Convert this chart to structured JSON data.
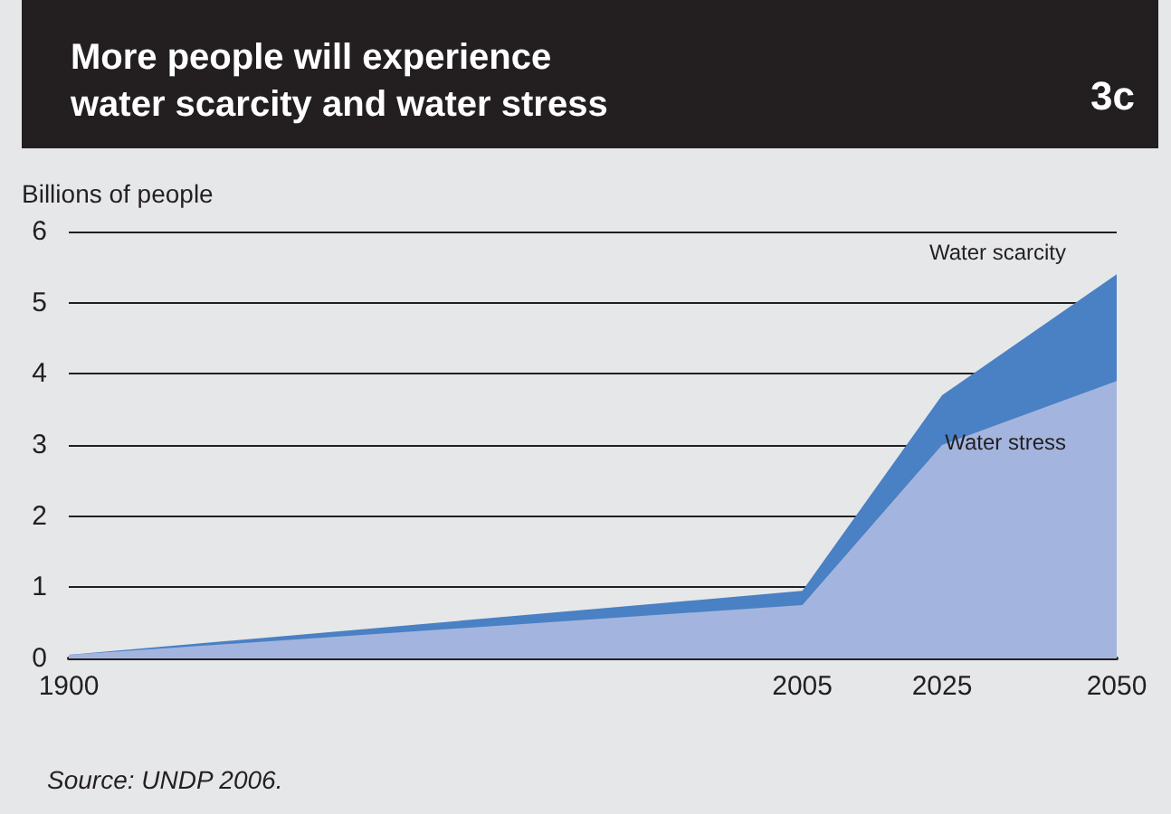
{
  "chart_data": {
    "type": "area",
    "title": "More people will experience\nwater scarcity and water stress",
    "ylabel": "Billions of people",
    "annotations": [
      "3c",
      "Source: UNDP 2006."
    ],
    "x": [
      1900,
      2005,
      2025,
      2050
    ],
    "xlim": [
      1900,
      2050
    ],
    "xticks": [
      {
        "value": 1900,
        "label": "1900"
      },
      {
        "value": 2005,
        "label": "2005"
      },
      {
        "value": 2025,
        "label": "2025"
      },
      {
        "value": 2050,
        "label": "2050"
      }
    ],
    "ylim": [
      0,
      6
    ],
    "yticks": [
      0,
      1,
      2,
      3,
      4,
      5,
      6
    ],
    "stacked": true,
    "grid": "y",
    "legend": false,
    "series": [
      {
        "name": "Water stress",
        "color": "#a3b5de",
        "values": [
          0.05,
          0.75,
          3.0,
          3.9
        ]
      },
      {
        "name": "Water scarcity",
        "color": "#4a80c4",
        "values": [
          0.0,
          0.2,
          0.7,
          1.5
        ]
      }
    ]
  }
}
